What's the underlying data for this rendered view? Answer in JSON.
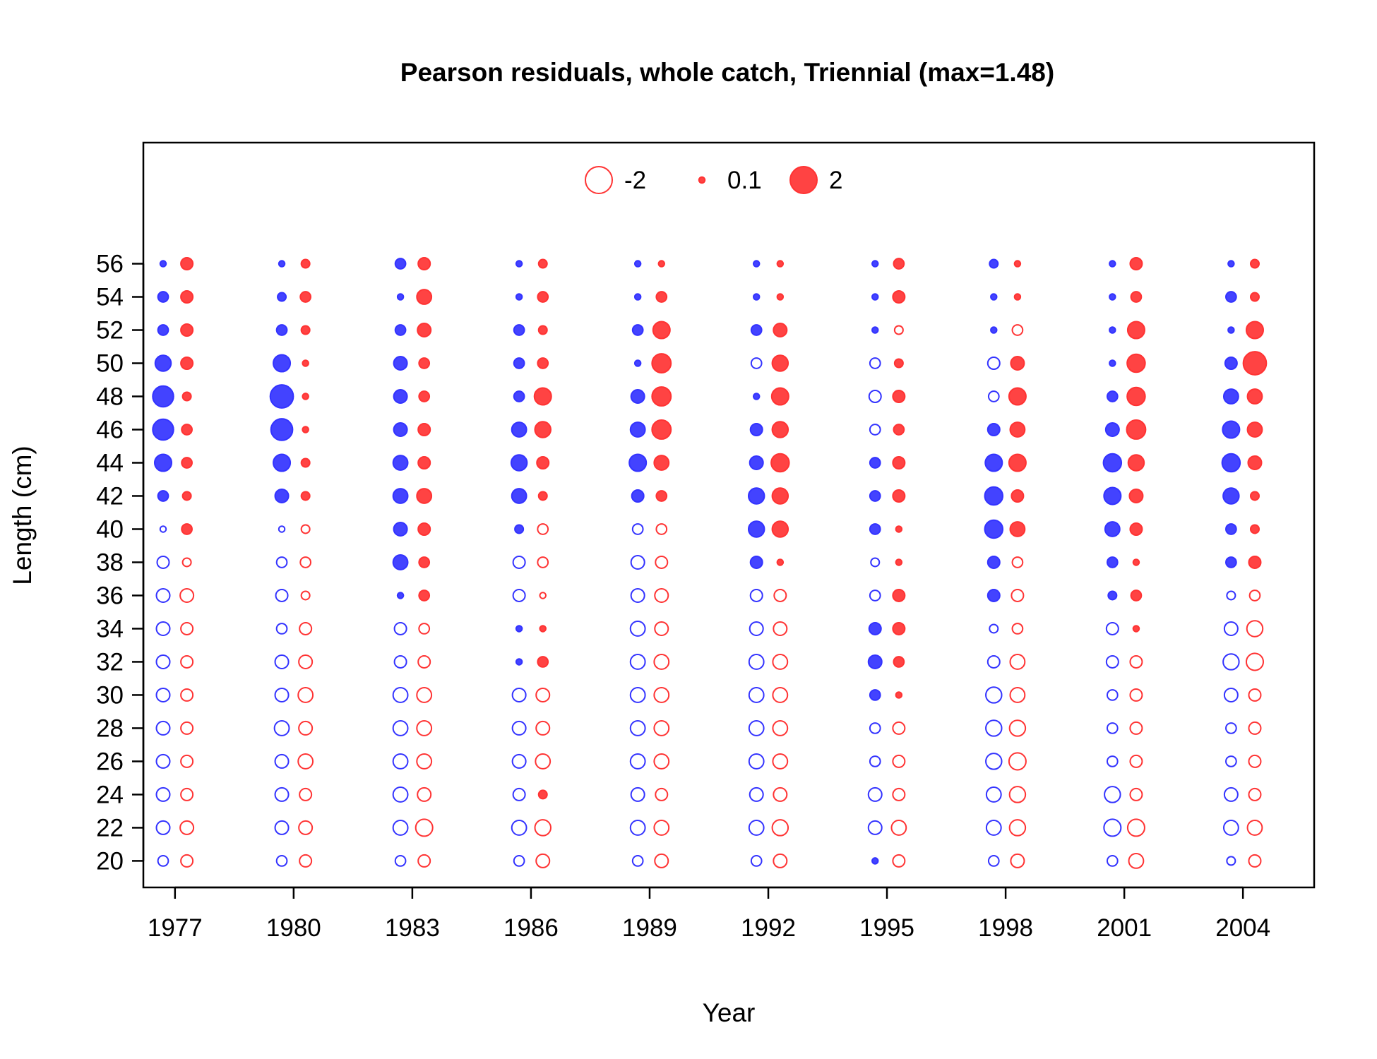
{
  "chart_data": {
    "type": "scatter",
    "title": "Pearson residuals, whole catch, Triennial (max=1.48)",
    "xlabel": "Year",
    "ylabel": "Length (cm)",
    "x_ticks": [
      "1977",
      "1980",
      "1983",
      "1986",
      "1989",
      "1992",
      "1995",
      "1998",
      "2001",
      "2004"
    ],
    "y_ticks": [
      "20",
      "22",
      "24",
      "26",
      "28",
      "30",
      "32",
      "34",
      "36",
      "38",
      "40",
      "42",
      "44",
      "46",
      "48",
      "50",
      "52",
      "54",
      "56"
    ],
    "xlim": [
      1976.2,
      2005.8
    ],
    "ylim": [
      18.4,
      63.3
    ],
    "lengths": [
      20,
      22,
      24,
      26,
      28,
      30,
      32,
      34,
      36,
      38,
      40,
      42,
      44,
      46,
      48,
      50,
      52,
      54,
      56
    ],
    "colors": {
      "sex1": "#3333ff",
      "sex2": "#ff3333"
    },
    "legend": {
      "placement": "top-center",
      "items": [
        {
          "label": "-2",
          "value": -2
        },
        {
          "label": "0.1",
          "value": 0.1
        },
        {
          "label": "2",
          "value": 2
        }
      ]
    },
    "series": [
      {
        "year_offset": -0.3,
        "color": "#3333ff",
        "points": [
          {
            "year": 1977,
            "residuals": [
              -0.3,
              -0.5,
              -0.5,
              -0.5,
              -0.5,
              -0.5,
              -0.5,
              -0.5,
              -0.5,
              -0.4,
              -0.1,
              0.3,
              0.8,
              1.2,
              1.2,
              0.7,
              0.3,
              0.3,
              0.1
            ]
          },
          {
            "year": 1980,
            "residuals": [
              -0.3,
              -0.5,
              -0.5,
              -0.5,
              -0.6,
              -0.5,
              -0.5,
              -0.3,
              -0.4,
              -0.3,
              -0.1,
              0.5,
              0.8,
              1.3,
              1.48,
              0.8,
              0.3,
              0.2,
              0.1
            ]
          },
          {
            "year": 1983,
            "residuals": [
              -0.3,
              -0.6,
              -0.6,
              -0.6,
              -0.6,
              -0.6,
              -0.4,
              -0.4,
              0.1,
              0.6,
              0.5,
              0.6,
              0.6,
              0.5,
              0.5,
              0.5,
              0.3,
              0.1,
              0.3
            ]
          },
          {
            "year": 1986,
            "residuals": [
              -0.3,
              -0.6,
              -0.4,
              -0.5,
              -0.5,
              -0.5,
              0.1,
              0.1,
              -0.4,
              -0.4,
              0.2,
              0.6,
              0.7,
              0.6,
              0.3,
              0.3,
              0.3,
              0.1,
              0.1
            ]
          },
          {
            "year": 1989,
            "residuals": [
              -0.3,
              -0.6,
              -0.5,
              -0.6,
              -0.6,
              -0.6,
              -0.6,
              -0.6,
              -0.5,
              -0.5,
              -0.3,
              0.4,
              0.8,
              0.6,
              0.5,
              0.1,
              0.3,
              0.1,
              0.1
            ]
          },
          {
            "year": 1992,
            "residuals": [
              -0.3,
              -0.6,
              -0.5,
              -0.6,
              -0.6,
              -0.6,
              -0.6,
              -0.5,
              -0.4,
              0.4,
              0.7,
              0.7,
              0.5,
              0.4,
              0.1,
              -0.3,
              0.3,
              0.1,
              0.1
            ]
          },
          {
            "year": 1995,
            "residuals": [
              0.1,
              -0.5,
              -0.5,
              -0.3,
              -0.3,
              0.3,
              0.5,
              0.4,
              -0.3,
              -0.2,
              0.3,
              0.3,
              0.3,
              -0.3,
              -0.4,
              -0.3,
              0.1,
              0.1,
              0.1
            ]
          },
          {
            "year": 1998,
            "residuals": [
              -0.3,
              -0.6,
              -0.6,
              -0.7,
              -0.7,
              -0.7,
              -0.4,
              -0.2,
              0.4,
              0.4,
              0.9,
              0.9,
              0.8,
              0.4,
              -0.3,
              -0.4,
              0.1,
              0.1,
              0.2
            ]
          },
          {
            "year": 2001,
            "residuals": [
              -0.3,
              -0.8,
              -0.7,
              -0.3,
              -0.3,
              -0.3,
              -0.4,
              -0.4,
              0.2,
              0.3,
              0.6,
              0.8,
              0.9,
              0.5,
              0.3,
              0.1,
              0.1,
              0.1,
              0.1
            ]
          },
          {
            "year": 2004,
            "residuals": [
              -0.2,
              -0.6,
              -0.5,
              -0.3,
              -0.3,
              -0.5,
              -0.7,
              -0.5,
              -0.2,
              0.3,
              0.3,
              0.7,
              0.9,
              0.8,
              0.6,
              0.4,
              0.1,
              0.3,
              0.1
            ]
          }
        ]
      },
      {
        "year_offset": 0.3,
        "color": "#ff3333",
        "points": [
          {
            "year": 1977,
            "residuals": [
              -0.4,
              -0.5,
              -0.4,
              -0.4,
              -0.4,
              -0.4,
              -0.4,
              -0.4,
              -0.5,
              -0.2,
              0.3,
              0.2,
              0.3,
              0.3,
              0.2,
              0.4,
              0.4,
              0.4,
              0.4
            ]
          },
          {
            "year": 1980,
            "residuals": [
              -0.4,
              -0.5,
              -0.4,
              -0.6,
              -0.5,
              -0.6,
              -0.5,
              -0.4,
              -0.2,
              -0.3,
              -0.2,
              0.2,
              0.2,
              0.1,
              0.1,
              0.1,
              0.2,
              0.3,
              0.2
            ]
          },
          {
            "year": 1983,
            "residuals": [
              -0.4,
              -0.8,
              -0.5,
              -0.6,
              -0.6,
              -0.6,
              -0.4,
              -0.3,
              0.3,
              0.3,
              0.4,
              0.6,
              0.4,
              0.4,
              0.3,
              0.3,
              0.5,
              0.6,
              0.4
            ]
          },
          {
            "year": 1986,
            "residuals": [
              -0.5,
              -0.7,
              0.2,
              -0.6,
              -0.5,
              -0.5,
              0.3,
              0.1,
              -0.1,
              -0.3,
              -0.3,
              0.2,
              0.4,
              0.7,
              0.8,
              0.3,
              0.2,
              0.3,
              0.2
            ]
          },
          {
            "year": 1989,
            "residuals": [
              -0.5,
              -0.6,
              -0.4,
              -0.6,
              -0.6,
              -0.6,
              -0.6,
              -0.5,
              -0.5,
              -0.4,
              -0.3,
              0.3,
              0.6,
              1.0,
              1.0,
              1.0,
              0.8,
              0.3,
              0.1
            ]
          },
          {
            "year": 1992,
            "residuals": [
              -0.5,
              -0.7,
              -0.5,
              -0.6,
              -0.6,
              -0.6,
              -0.6,
              -0.5,
              -0.4,
              0.1,
              0.7,
              0.7,
              0.9,
              0.7,
              0.8,
              0.7,
              0.5,
              0.1,
              0.1
            ]
          },
          {
            "year": 1995,
            "residuals": [
              -0.4,
              -0.6,
              -0.4,
              -0.4,
              -0.4,
              0.1,
              0.3,
              0.4,
              0.4,
              0.1,
              0.1,
              0.4,
              0.4,
              0.3,
              0.4,
              0.2,
              -0.2,
              0.4,
              0.3
            ]
          },
          {
            "year": 1998,
            "residuals": [
              -0.5,
              -0.7,
              -0.7,
              -0.8,
              -0.7,
              -0.6,
              -0.6,
              -0.3,
              -0.4,
              -0.3,
              0.6,
              0.4,
              0.8,
              0.6,
              0.8,
              0.5,
              -0.3,
              0.1,
              0.1
            ]
          },
          {
            "year": 2001,
            "residuals": [
              -0.6,
              -0.8,
              -0.4,
              -0.4,
              -0.4,
              -0.4,
              -0.4,
              0.1,
              0.3,
              0.1,
              0.4,
              0.5,
              0.7,
              1.0,
              0.9,
              0.9,
              0.8,
              0.3,
              0.4
            ]
          },
          {
            "year": 2004,
            "residuals": [
              -0.4,
              -0.6,
              -0.4,
              -0.4,
              -0.4,
              -0.4,
              -0.8,
              -0.7,
              -0.3,
              0.4,
              0.2,
              0.2,
              0.5,
              0.6,
              0.6,
              1.48,
              0.8,
              0.2,
              0.2
            ]
          }
        ]
      }
    ]
  }
}
